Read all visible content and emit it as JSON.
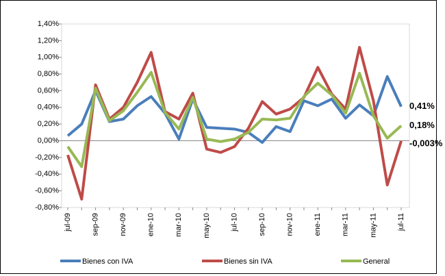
{
  "chart_data": {
    "type": "line",
    "categories": [
      "jul-09",
      null,
      "sep-09",
      null,
      "nov-09",
      null,
      "ene-10",
      null,
      "mar-10",
      null,
      "may-10",
      null,
      "jul-10",
      null,
      "sep-10",
      null,
      "nov-10",
      null,
      "ene-11",
      null,
      "mar-11",
      null,
      "may-11",
      null,
      "jul-11"
    ],
    "series": [
      {
        "name": "Bienes con IVA",
        "color": "#4a7ebb",
        "values": [
          0.06,
          0.2,
          0.6,
          0.23,
          0.26,
          0.42,
          0.53,
          0.33,
          0.02,
          0.5,
          0.16,
          0.15,
          0.14,
          0.1,
          -0.02,
          0.17,
          0.11,
          0.48,
          0.42,
          0.5,
          0.27,
          0.43,
          0.3,
          0.77,
          0.41
        ],
        "value_labels": [
          null,
          null,
          null,
          null,
          null,
          null,
          null,
          null,
          null,
          null,
          null,
          null,
          null,
          null,
          null,
          null,
          null,
          null,
          null,
          null,
          null,
          null,
          null,
          null,
          "0,41%"
        ]
      },
      {
        "name": "Bienes sin IVA",
        "color": "#be4b48",
        "values": [
          -0.17,
          -0.7,
          0.67,
          0.26,
          0.4,
          0.7,
          1.06,
          0.35,
          0.26,
          0.57,
          -0.1,
          -0.14,
          -0.07,
          0.15,
          0.47,
          0.32,
          0.38,
          0.52,
          0.88,
          0.56,
          0.38,
          1.12,
          0.48,
          -0.53,
          -0.003
        ],
        "value_labels": [
          null,
          null,
          null,
          null,
          null,
          null,
          null,
          null,
          null,
          null,
          null,
          null,
          null,
          null,
          null,
          null,
          null,
          null,
          null,
          null,
          null,
          null,
          null,
          null,
          "-0,003%"
        ]
      },
      {
        "name": "General",
        "color": "#98b954",
        "values": [
          -0.07,
          -0.31,
          0.63,
          0.24,
          0.36,
          0.58,
          0.82,
          0.34,
          0.14,
          0.52,
          0.02,
          -0.01,
          0.02,
          0.1,
          0.26,
          0.25,
          0.27,
          0.53,
          0.69,
          0.55,
          0.33,
          0.81,
          0.3,
          0.03,
          0.18
        ],
        "value_labels": [
          null,
          null,
          null,
          null,
          null,
          null,
          null,
          null,
          null,
          null,
          null,
          null,
          null,
          null,
          null,
          null,
          null,
          null,
          null,
          null,
          null,
          null,
          null,
          null,
          "0,18%"
        ]
      }
    ],
    "ylim": [
      -0.8,
      1.4
    ],
    "yticks": [
      {
        "value": 1.4,
        "label": "1,40%"
      },
      {
        "value": 1.2,
        "label": "1,20%"
      },
      {
        "value": 1.0,
        "label": "1,00%"
      },
      {
        "value": 0.8,
        "label": "0,80%"
      },
      {
        "value": 0.6,
        "label": "0,60%"
      },
      {
        "value": 0.4,
        "label": "0,40%"
      },
      {
        "value": 0.2,
        "label": "0,20%"
      },
      {
        "value": 0.0,
        "label": "0,00%"
      },
      {
        "value": -0.2,
        "label": "-0,20%"
      },
      {
        "value": -0.4,
        "label": "-0,40%"
      },
      {
        "value": -0.6,
        "label": "-0,60%"
      },
      {
        "value": -0.8,
        "label": "-0,80%"
      }
    ],
    "legend": "bottom",
    "grid": false
  }
}
